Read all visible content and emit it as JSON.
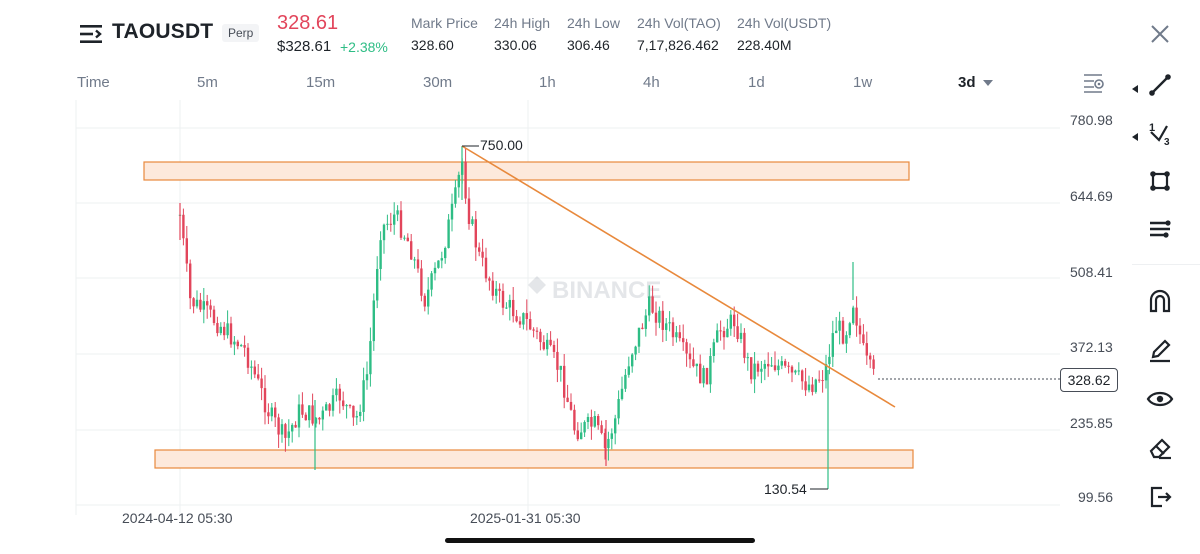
{
  "header": {
    "symbol": "TAOUSDT",
    "contract_type": "Perp",
    "last_price": "328.61",
    "usd_price": "$328.61",
    "change_percent": "+2.38%",
    "stats": [
      {
        "label": "Mark Price",
        "value": "328.60"
      },
      {
        "label": "24h High",
        "value": "330.06"
      },
      {
        "label": "24h Low",
        "value": "306.46"
      },
      {
        "label": "24h Vol(TAO)",
        "value": "7,17,826.462"
      },
      {
        "label": "24h Vol(USDT)",
        "value": "228.40M"
      }
    ]
  },
  "timeframes": {
    "label": "Time",
    "items": [
      "5m",
      "15m",
      "30m",
      "1h",
      "4h",
      "1d",
      "1w"
    ],
    "active": "3d"
  },
  "chart": {
    "y_ticks": [
      "780.98",
      "644.69",
      "508.41",
      "372.13",
      "235.85",
      "99.56"
    ],
    "x_ticks": [
      "2024-04-12 05:30",
      "2025-01-31 05:30"
    ],
    "current_price_label": "328.62",
    "high_annotation": "750.00",
    "low_annotation": "130.54",
    "watermark": "BINANCE"
  },
  "toolbar": {
    "icons": [
      "trend-line-icon",
      "fib-icon",
      "shape-icon",
      "indicator-icon",
      "magnet-icon",
      "pencil-icon",
      "eye-icon",
      "eraser-icon",
      "exit-icon"
    ]
  },
  "colors": {
    "up": "#2ebd85",
    "down": "#e2455b",
    "zone_fill": "#fde9dc",
    "zone_stroke": "#e8893c",
    "trendline": "#e8893c"
  }
}
